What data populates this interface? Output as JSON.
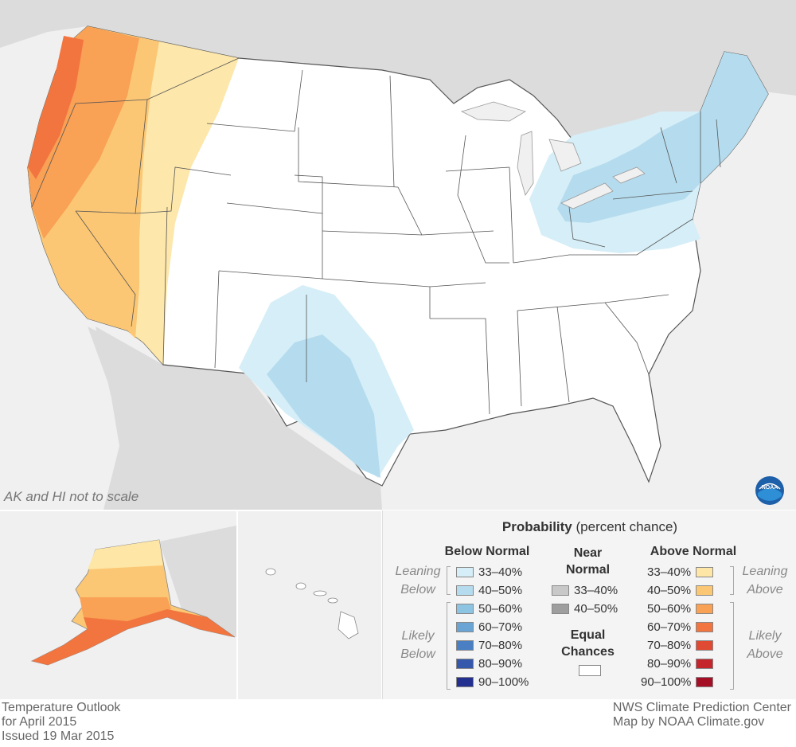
{
  "map": {
    "ak_note": "AK and HI not to scale",
    "title_lines": [
      "Temperature Outlook",
      "for April 2015",
      "Issued 19 Mar 2015"
    ],
    "credit_lines": [
      "NWS Climate Prediction Center",
      "Map by NOAA Climate.gov"
    ],
    "logo": "NOAA",
    "colors": {
      "land_outside": "#dcdcdc",
      "water": "#f0f0f0",
      "conus_equal": "#ffffff",
      "border": "#555555"
    }
  },
  "legend": {
    "title_bold": "Probability",
    "title_rest": "(percent chance)",
    "below_head": "Below Normal",
    "near_head": [
      "Near",
      "Normal"
    ],
    "above_head": "Above Normal",
    "leaning_below": [
      "Leaning",
      "Below"
    ],
    "likely_below": [
      "Likely",
      "Below"
    ],
    "leaning_above": [
      "Leaning",
      "Above"
    ],
    "likely_above": [
      "Likely",
      "Above"
    ],
    "below": [
      {
        "label": "33–40%",
        "color": "#d6eef7"
      },
      {
        "label": "40–50%",
        "color": "#b5dcee"
      },
      {
        "label": "50–60%",
        "color": "#8dc4e2"
      },
      {
        "label": "60–70%",
        "color": "#6aa4d4"
      },
      {
        "label": "70–80%",
        "color": "#4a7fc4"
      },
      {
        "label": "80–90%",
        "color": "#3558ad"
      },
      {
        "label": "90–100%",
        "color": "#23308f"
      }
    ],
    "near": [
      {
        "label": "33–40%",
        "color": "#c8c8c8"
      },
      {
        "label": "40–50%",
        "color": "#9e9e9e"
      }
    ],
    "equal_label": [
      "Equal",
      "Chances"
    ],
    "equal_color": "#ffffff",
    "above": [
      {
        "label": "33–40%",
        "color": "#fde6a6"
      },
      {
        "label": "40–50%",
        "color": "#fcc774"
      },
      {
        "label": "50–60%",
        "color": "#f9a155"
      },
      {
        "label": "60–70%",
        "color": "#f2743f"
      },
      {
        "label": "70–80%",
        "color": "#e04a33"
      },
      {
        "label": "80–90%",
        "color": "#c5262b"
      },
      {
        "label": "90–100%",
        "color": "#a50f26"
      }
    ]
  }
}
